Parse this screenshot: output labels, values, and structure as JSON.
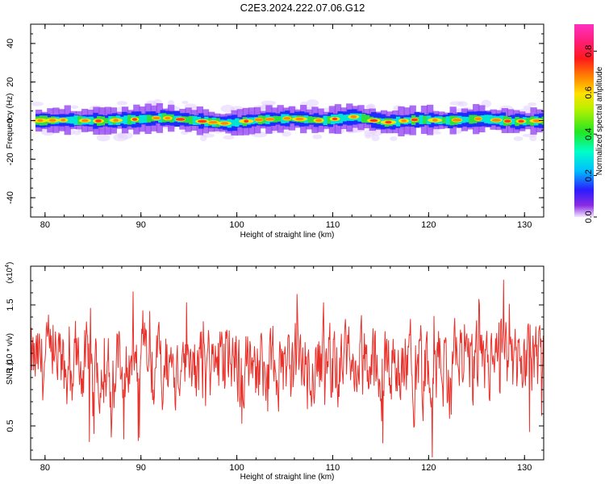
{
  "title": "C2E3.2024.222.07.06.G12",
  "chart_data": [
    {
      "type": "heatmap",
      "xlabel": "Height of straight line (km)",
      "ylabel": "Frequency (Hz)",
      "xlim": [
        78.5,
        132
      ],
      "ylim": [
        -50,
        50
      ],
      "xticks": [
        80,
        90,
        100,
        110,
        120,
        130
      ],
      "yticks": [
        -40,
        -20,
        0,
        20,
        40
      ],
      "grid": false,
      "colorbar": {
        "label": "Normalized spectral amplitude",
        "range": [
          0.0,
          0.93
        ],
        "ticks": [
          0.0,
          0.2,
          0.4,
          0.6,
          0.8
        ]
      },
      "band": {
        "center_hz": [
          0.0,
          0.3,
          -0.2,
          0.5,
          1.5,
          0.0,
          -1.5,
          0.4,
          1.2,
          0.0,
          2.0,
          -1.0,
          0.5,
          0.0,
          1.0,
          -0.5,
          0.0
        ],
        "x_start": 79,
        "x_end": 132
      }
    },
    {
      "type": "line",
      "xlabel": "Height of straight line (km)",
      "ylabel": "SNR (10 * v/v)",
      "y_multiplier": "(x10",
      "y_multiplier_exp": "4",
      "y_multiplier_close": ")",
      "xlim": [
        78.5,
        132
      ],
      "ylim": [
        0.22,
        1.82
      ],
      "xticks": [
        80,
        90,
        100,
        110,
        120,
        130
      ],
      "yticks": [
        0.5,
        1.0,
        1.5
      ],
      "line_color": "#e8312a",
      "grid": false
    }
  ]
}
